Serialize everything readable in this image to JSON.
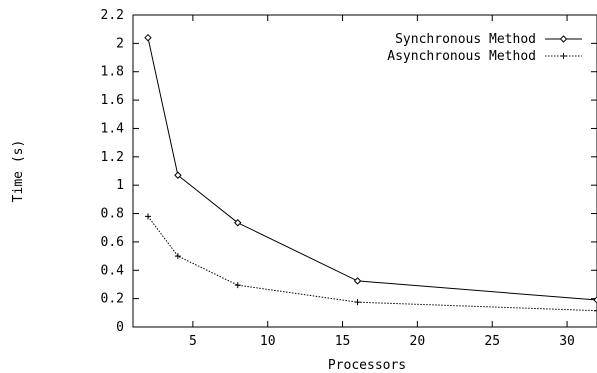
{
  "chart_data": {
    "type": "line",
    "xlabel": "Processors",
    "ylabel": "Time (s)",
    "xlim": [
      1,
      32
    ],
    "ylim": [
      0,
      2.2
    ],
    "xticks": [
      5,
      10,
      15,
      20,
      25,
      30
    ],
    "yticks": [
      0,
      0.2,
      0.4,
      0.6,
      0.8,
      1,
      1.2,
      1.4,
      1.6,
      1.8,
      2,
      2.2
    ],
    "grid": false,
    "legend_position": "top-right",
    "series": [
      {
        "name": "Synchronous Method",
        "marker": "diamond",
        "line_style": "solid",
        "x": [
          2,
          4,
          8,
          16,
          32
        ],
        "y": [
          2.04,
          1.07,
          0.735,
          0.325,
          0.19
        ]
      },
      {
        "name": "Asynchronous Method",
        "marker": "plus",
        "line_style": "dotted",
        "x": [
          2,
          4,
          8,
          16,
          32
        ],
        "y": [
          0.78,
          0.5,
          0.295,
          0.175,
          0.115
        ]
      }
    ]
  }
}
